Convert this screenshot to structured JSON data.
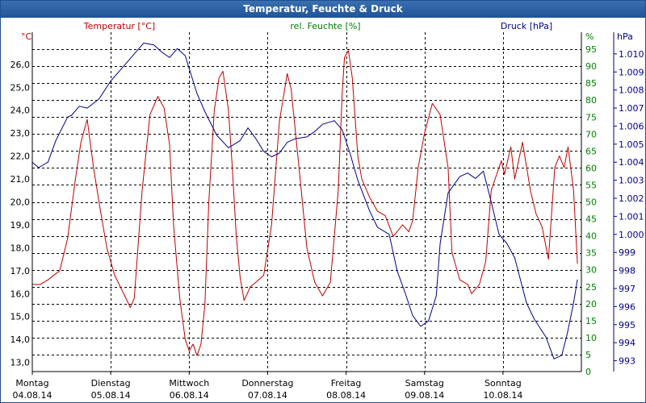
{
  "window": {
    "title": "Temperatur, Feuchte & Druck"
  },
  "chart_data": {
    "type": "line",
    "title": "Temperatur, Feuchte & Druck",
    "x_categories": [
      {
        "day": "Montag",
        "date": "04.08.14"
      },
      {
        "day": "Dienstag",
        "date": "05.08.14"
      },
      {
        "day": "Mittwoch",
        "date": "06.08.14"
      },
      {
        "day": "Donnerstag",
        "date": "07.08.14"
      },
      {
        "day": "Freitag",
        "date": "08.08.14"
      },
      {
        "day": "Samstag",
        "date": "09.08.14"
      },
      {
        "day": "Sonntag",
        "date": "10.08.14"
      }
    ],
    "xlim": [
      0,
      7
    ],
    "grid": true,
    "axes": {
      "temperature": {
        "label": "Temperatur [°C]",
        "unit": "°C",
        "side": "left",
        "color": "#c00000",
        "ylim": [
          12.6,
          27.4
        ],
        "ticks": [
          "13,0",
          "14,0",
          "15,0",
          "16,0",
          "17,0",
          "18,0",
          "19,0",
          "20,0",
          "21,0",
          "22,0",
          "23,0",
          "24,0",
          "25,0",
          "26,0"
        ]
      },
      "humidity": {
        "label": "rel. Feuchte [%]",
        "unit": "%",
        "side": "right",
        "color": "#008000",
        "ylim": [
          0,
          100
        ],
        "ticks": [
          "0",
          "5",
          "10",
          "15",
          "20",
          "25",
          "30",
          "35",
          "40",
          "45",
          "50",
          "55",
          "60",
          "65",
          "70",
          "75",
          "80",
          "85",
          "90",
          "95"
        ]
      },
      "pressure": {
        "label": "Druck [hPa]",
        "unit": "hPa",
        "side": "right",
        "color": "#00008b",
        "ylim": [
          992.4,
          1011.2
        ],
        "ticks": [
          "993",
          "994",
          "995",
          "996",
          "997",
          "998",
          "999",
          "1.000",
          "1.001",
          "1.002",
          "1.003",
          "1.004",
          "1.005",
          "1.006",
          "1.007",
          "1.008",
          "1.009",
          "1.010"
        ]
      }
    },
    "series": [
      {
        "name": "Temperatur",
        "axis": "temperature",
        "color": "#c00000",
        "x": [
          0,
          0.1,
          0.2,
          0.35,
          0.45,
          0.55,
          0.62,
          0.7,
          0.78,
          0.86,
          0.95,
          1.05,
          1.15,
          1.25,
          1.3,
          1.4,
          1.5,
          1.6,
          1.68,
          1.75,
          1.8,
          1.88,
          1.95,
          2.0,
          2.05,
          2.1,
          2.15,
          2.2,
          2.25,
          2.32,
          2.38,
          2.43,
          2.5,
          2.55,
          2.6,
          2.65,
          2.7,
          2.78,
          2.85,
          2.95,
          3.05,
          3.15,
          3.25,
          3.3,
          3.4,
          3.5,
          3.6,
          3.7,
          3.8,
          3.9,
          3.95,
          3.98,
          4.03,
          4.08,
          4.15,
          4.2,
          4.3,
          4.4,
          4.5,
          4.6,
          4.65,
          4.72,
          4.8,
          4.85,
          4.92,
          5.0,
          5.1,
          5.2,
          5.3,
          5.35,
          5.45,
          5.55,
          5.6,
          5.7,
          5.78,
          5.85,
          5.9,
          5.98,
          6.02,
          6.1,
          6.15,
          6.25,
          6.35,
          6.42,
          6.5,
          6.58,
          6.66,
          6.72,
          6.78,
          6.83,
          6.9,
          6.95
        ],
        "values": [
          16.4,
          16.4,
          16.6,
          17.0,
          18.4,
          21.0,
          22.6,
          23.6,
          21.5,
          19.8,
          18.0,
          16.8,
          16.1,
          15.4,
          15.8,
          20.5,
          23.8,
          24.6,
          24.1,
          22.5,
          19.0,
          15.8,
          14.0,
          13.5,
          13.8,
          13.3,
          13.8,
          15.5,
          20.0,
          24.0,
          25.4,
          25.7,
          24.0,
          21.5,
          18.5,
          16.7,
          15.7,
          16.3,
          16.5,
          16.8,
          19.0,
          23.5,
          25.6,
          24.9,
          21.5,
          18.0,
          16.5,
          15.9,
          16.5,
          20.5,
          24.7,
          26.3,
          26.6,
          25.4,
          22.0,
          21.0,
          20.2,
          19.6,
          19.4,
          18.5,
          18.7,
          19.0,
          18.7,
          19.2,
          21.5,
          23.0,
          24.3,
          23.8,
          21.5,
          17.8,
          16.6,
          16.4,
          16.0,
          16.4,
          17.4,
          20.5,
          21.0,
          21.8,
          21.2,
          22.4,
          21.0,
          22.6,
          20.5,
          19.5,
          18.9,
          17.5,
          21.5,
          22.0,
          21.5,
          22.4,
          20.5,
          17.3
        ]
      },
      {
        "name": "rel. Feuchte",
        "axis": "humidity",
        "color": "#008000",
        "x": [],
        "values": []
      },
      {
        "name": "Druck",
        "axis": "pressure",
        "color": "#00008b",
        "x": [
          0,
          0.08,
          0.2,
          0.3,
          0.45,
          0.5,
          0.6,
          0.7,
          0.85,
          1.0,
          1.1,
          1.2,
          1.3,
          1.42,
          1.55,
          1.65,
          1.75,
          1.85,
          1.95,
          2.05,
          2.1,
          2.2,
          2.35,
          2.5,
          2.65,
          2.75,
          2.85,
          2.95,
          3.05,
          3.15,
          3.25,
          3.35,
          3.5,
          3.6,
          3.7,
          3.85,
          3.95,
          4.05,
          4.15,
          4.3,
          4.4,
          4.55,
          4.65,
          4.75,
          4.85,
          4.95,
          5.05,
          5.15,
          5.2,
          5.3,
          5.45,
          5.55,
          5.65,
          5.75,
          5.85,
          5.95,
          6.05,
          6.15,
          6.3,
          6.4,
          6.55,
          6.65,
          6.75,
          6.82,
          6.9,
          6.95
        ],
        "values": [
          1004.0,
          1003.7,
          1004.0,
          1005.2,
          1006.5,
          1006.6,
          1007.1,
          1007.0,
          1007.5,
          1008.5,
          1009.0,
          1009.5,
          1010.0,
          1010.6,
          1010.5,
          1010.1,
          1009.8,
          1010.3,
          1009.9,
          1008.5,
          1007.8,
          1006.8,
          1005.5,
          1004.8,
          1005.2,
          1005.9,
          1005.3,
          1004.6,
          1004.3,
          1004.5,
          1005.1,
          1005.3,
          1005.4,
          1005.7,
          1006.1,
          1006.3,
          1005.8,
          1004.5,
          1003.0,
          1001.3,
          1000.4,
          1000.0,
          998.0,
          996.8,
          995.5,
          994.9,
          995.2,
          996.6,
          999.5,
          1002.3,
          1003.2,
          1003.4,
          1003.1,
          1003.5,
          1001.8,
          1000.0,
          999.5,
          998.7,
          996.2,
          995.3,
          994.3,
          993.1,
          993.3,
          994.5,
          996.2,
          997.5
        ]
      }
    ]
  }
}
